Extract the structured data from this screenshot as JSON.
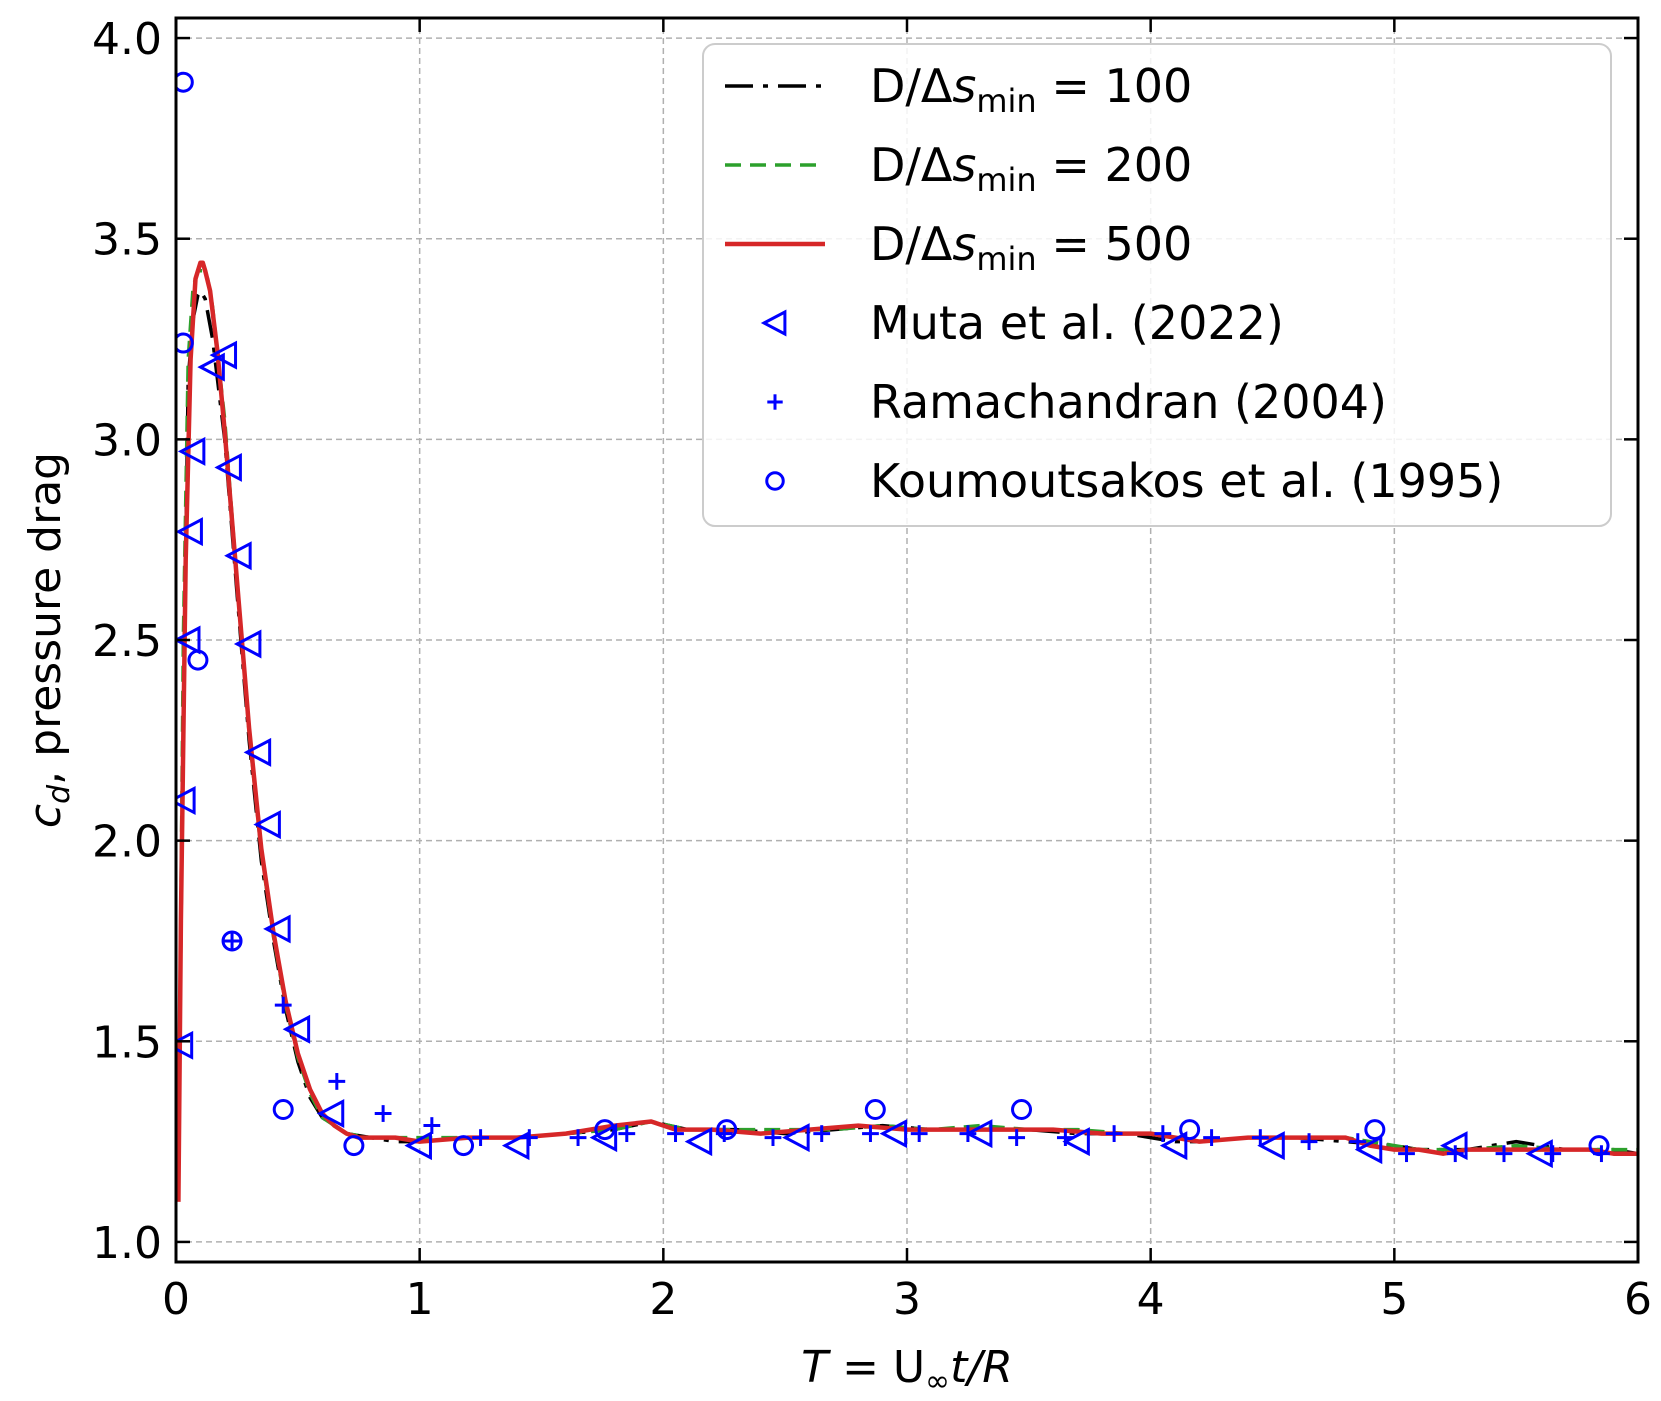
{
  "chart_data": {
    "type": "line",
    "xlabel": {
      "pre": "T",
      "mid": " = U",
      "sub": "∞",
      "post": "t/R"
    },
    "ylabel": {
      "sym": "c",
      "sub": "d",
      "rest": ", pressure drag"
    },
    "xlim": [
      0,
      6
    ],
    "ylim": [
      0.95,
      4.05
    ],
    "xticks": [
      0,
      1,
      2,
      3,
      4,
      5,
      6
    ],
    "yticks": [
      1.0,
      1.5,
      2.0,
      2.5,
      3.0,
      3.5,
      4.0
    ],
    "xtick_labels": [
      "0",
      "1",
      "2",
      "3",
      "4",
      "5",
      "6"
    ],
    "ytick_labels": [
      "1.0",
      "1.5",
      "2.0",
      "2.5",
      "3.0",
      "3.5",
      "4.0"
    ],
    "grid": true,
    "legend_position": "top-right",
    "series": [
      {
        "name_main": "D/Δ",
        "name_var": "s",
        "name_sub": "min",
        "name_tail": " = 100",
        "style": "dashdot",
        "color": "#000000",
        "x": [
          0.01,
          0.03,
          0.05,
          0.07,
          0.09,
          0.1,
          0.12,
          0.15,
          0.2,
          0.25,
          0.3,
          0.35,
          0.4,
          0.45,
          0.5,
          0.55,
          0.6,
          0.65,
          0.7,
          0.8,
          0.9,
          1.0,
          1.2,
          1.4,
          1.6,
          1.8,
          1.95,
          2.1,
          2.3,
          2.5,
          2.7,
          2.9,
          3.1,
          3.3,
          3.5,
          3.7,
          3.9,
          4.0,
          4.1,
          4.2,
          4.4,
          4.6,
          4.8,
          5.0,
          5.1,
          5.3,
          5.5,
          5.7,
          5.9,
          6.0
        ],
        "y": [
          1.18,
          2.3,
          3.15,
          3.3,
          3.36,
          3.37,
          3.35,
          3.25,
          3.0,
          2.62,
          2.25,
          1.95,
          1.75,
          1.58,
          1.45,
          1.36,
          1.31,
          1.29,
          1.27,
          1.26,
          1.25,
          1.25,
          1.26,
          1.26,
          1.27,
          1.28,
          1.3,
          1.28,
          1.28,
          1.27,
          1.28,
          1.29,
          1.28,
          1.28,
          1.28,
          1.27,
          1.27,
          1.26,
          1.25,
          1.25,
          1.26,
          1.26,
          1.25,
          1.24,
          1.23,
          1.23,
          1.25,
          1.23,
          1.23,
          1.22
        ]
      },
      {
        "name_main": "D/Δ",
        "name_var": "s",
        "name_sub": "min",
        "name_tail": " = 200",
        "style": "dashed",
        "color": "#2ca02c",
        "x": [
          0.01,
          0.03,
          0.05,
          0.07,
          0.09,
          0.11,
          0.13,
          0.15,
          0.2,
          0.25,
          0.3,
          0.35,
          0.4,
          0.45,
          0.5,
          0.55,
          0.6,
          0.65,
          0.7,
          0.8,
          0.9,
          1.0,
          1.2,
          1.4,
          1.6,
          1.8,
          1.95,
          2.1,
          2.3,
          2.5,
          2.7,
          2.9,
          3.1,
          3.3,
          3.5,
          3.7,
          3.9,
          4.0,
          4.1,
          4.2,
          4.4,
          4.6,
          4.8,
          5.0,
          5.1,
          5.3,
          5.5,
          5.7,
          5.9,
          6.0
        ],
        "y": [
          1.15,
          2.5,
          3.2,
          3.38,
          3.42,
          3.42,
          3.4,
          3.33,
          3.05,
          2.65,
          2.27,
          1.97,
          1.76,
          1.59,
          1.46,
          1.37,
          1.31,
          1.29,
          1.27,
          1.26,
          1.26,
          1.26,
          1.26,
          1.26,
          1.27,
          1.28,
          1.3,
          1.28,
          1.28,
          1.28,
          1.28,
          1.29,
          1.28,
          1.29,
          1.28,
          1.28,
          1.27,
          1.27,
          1.26,
          1.25,
          1.26,
          1.26,
          1.26,
          1.24,
          1.23,
          1.23,
          1.24,
          1.23,
          1.23,
          1.23
        ]
      },
      {
        "name_main": "D/Δ",
        "name_var": "s",
        "name_sub": "min",
        "name_tail": " = 500",
        "style": "solid",
        "color": "#d62728",
        "x": [
          0.01,
          0.02,
          0.04,
          0.06,
          0.08,
          0.1,
          0.11,
          0.12,
          0.14,
          0.17,
          0.2,
          0.25,
          0.3,
          0.35,
          0.4,
          0.45,
          0.5,
          0.55,
          0.6,
          0.65,
          0.7,
          0.75,
          0.8,
          0.9,
          1.0,
          1.2,
          1.4,
          1.6,
          1.8,
          1.95,
          2.05,
          2.2,
          2.4,
          2.6,
          2.8,
          3.0,
          3.2,
          3.4,
          3.6,
          3.8,
          4.0,
          4.1,
          4.2,
          4.4,
          4.6,
          4.8,
          4.9,
          5.0,
          5.1,
          5.2,
          5.3,
          5.4,
          5.5,
          5.6,
          5.7,
          5.8,
          5.9,
          6.0
        ],
        "y": [
          1.1,
          1.8,
          2.7,
          3.2,
          3.4,
          3.44,
          3.44,
          3.42,
          3.37,
          3.22,
          3.02,
          2.65,
          2.28,
          1.98,
          1.77,
          1.6,
          1.47,
          1.38,
          1.32,
          1.29,
          1.27,
          1.26,
          1.26,
          1.26,
          1.25,
          1.26,
          1.26,
          1.27,
          1.29,
          1.3,
          1.28,
          1.28,
          1.27,
          1.28,
          1.29,
          1.28,
          1.28,
          1.28,
          1.28,
          1.27,
          1.27,
          1.26,
          1.25,
          1.26,
          1.26,
          1.26,
          1.24,
          1.23,
          1.23,
          1.22,
          1.23,
          1.23,
          1.23,
          1.23,
          1.23,
          1.23,
          1.22,
          1.22
        ]
      },
      {
        "name_main": "Muta et al. (2022)",
        "marker": "triangle-left",
        "color": "#0000ff",
        "x": [
          0.02,
          0.03,
          0.05,
          0.06,
          0.07,
          0.15,
          0.2,
          0.22,
          0.26,
          0.3,
          0.34,
          0.38,
          0.42,
          0.5,
          0.64,
          1.0,
          1.4,
          1.76,
          2.15,
          2.55,
          2.95,
          3.3,
          3.7,
          4.1,
          4.5,
          4.9,
          5.25,
          5.6
        ],
        "y": [
          1.49,
          2.1,
          2.5,
          2.77,
          2.97,
          3.18,
          3.21,
          2.93,
          2.71,
          2.49,
          2.22,
          2.04,
          1.78,
          1.53,
          1.32,
          1.24,
          1.24,
          1.26,
          1.25,
          1.26,
          1.27,
          1.27,
          1.25,
          1.24,
          1.24,
          1.23,
          1.24,
          1.22
        ]
      },
      {
        "name_main": "Ramachandran (2004)",
        "marker": "plus",
        "color": "#0000ff",
        "x": [
          0.23,
          0.44,
          0.66,
          0.85,
          1.05,
          1.25,
          1.45,
          1.65,
          1.85,
          2.05,
          2.25,
          2.45,
          2.65,
          2.85,
          3.05,
          3.25,
          3.45,
          3.65,
          3.85,
          4.05,
          4.25,
          4.45,
          4.65,
          4.85,
          5.05,
          5.25,
          5.45,
          5.65,
          5.85
        ],
        "y": [
          1.75,
          1.59,
          1.4,
          1.32,
          1.29,
          1.26,
          1.26,
          1.26,
          1.27,
          1.27,
          1.27,
          1.26,
          1.27,
          1.27,
          1.27,
          1.27,
          1.26,
          1.26,
          1.27,
          1.27,
          1.26,
          1.26,
          1.25,
          1.25,
          1.22,
          1.22,
          1.22,
          1.22,
          1.22
        ]
      },
      {
        "name_main": "Koumoutsakos et al. (1995)",
        "marker": "circle",
        "color": "#0000ff",
        "x": [
          0.03,
          0.03,
          0.09,
          0.23,
          0.44,
          0.73,
          1.18,
          1.76,
          2.26,
          2.87,
          3.47,
          4.16,
          4.92,
          5.84
        ],
        "y": [
          3.89,
          3.24,
          2.45,
          1.75,
          1.33,
          1.24,
          1.24,
          1.28,
          1.28,
          1.33,
          1.33,
          1.28,
          1.28,
          1.24
        ]
      }
    ]
  }
}
